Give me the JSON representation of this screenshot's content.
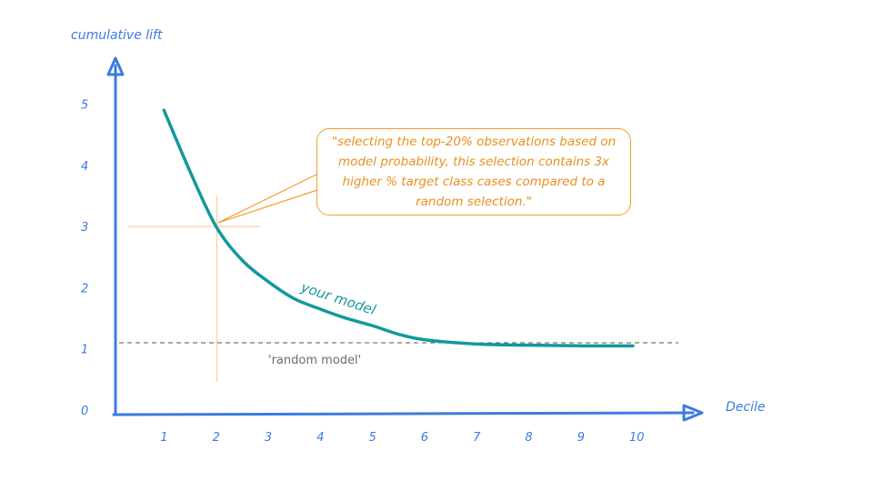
{
  "chart_data": {
    "type": "line",
    "xlabel": "Decile",
    "ylabel": "cumulative lift",
    "x_ticks": [
      "1",
      "2",
      "3",
      "4",
      "5",
      "6",
      "7",
      "8",
      "9",
      "10"
    ],
    "y_ticks": [
      "0",
      "1",
      "2",
      "3",
      "4",
      "5"
    ],
    "xlim": [
      0,
      10
    ],
    "ylim": [
      0,
      5
    ],
    "grid": false,
    "series": [
      {
        "name": "your model",
        "color": "#13989c",
        "x": [
          1,
          1.5,
          2,
          2.5,
          3,
          3.5,
          4,
          4.5,
          5,
          5.5,
          6,
          7,
          8,
          9,
          10
        ],
        "values": [
          4.9,
          3.9,
          3.0,
          2.45,
          2.1,
          1.82,
          1.65,
          1.5,
          1.38,
          1.24,
          1.15,
          1.08,
          1.06,
          1.05,
          1.05
        ]
      },
      {
        "name": "'random model'",
        "color": "#555555",
        "style": "dashed",
        "x": [
          0,
          11
        ],
        "values": [
          1.1,
          1.1
        ]
      }
    ],
    "annotation": {
      "text": "\"selecting the top-20% observations based on model probability, this selection contains 3x higher % target class cases compared to a random selection.\"",
      "color": "#f0a030",
      "points_to": {
        "x": 2,
        "y": 3
      }
    }
  }
}
